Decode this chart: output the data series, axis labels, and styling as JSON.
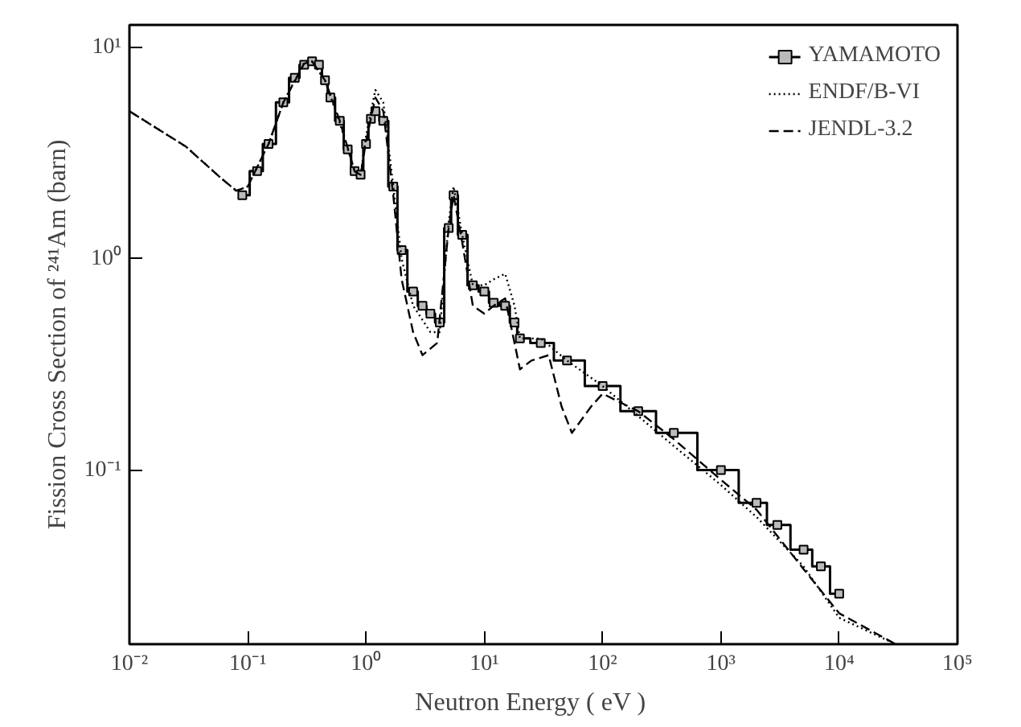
{
  "chart_data": {
    "type": "line",
    "xlabel": "Neutron   Energy   ( eV )",
    "ylabel": "Fission Cross Section of ²⁴¹Am (barn)",
    "log": "xy",
    "xlim": [
      0.01,
      100000
    ],
    "ylim": [
      0.015,
      12.8
    ],
    "xticks": [
      {
        "value": 0.01,
        "label": "10⁻²"
      },
      {
        "value": 0.1,
        "label": "10⁻¹"
      },
      {
        "value": 1,
        "label": "10⁰"
      },
      {
        "value": 10,
        "label": "10¹"
      },
      {
        "value": 100,
        "label": "10²"
      },
      {
        "value": 1000,
        "label": "10³"
      },
      {
        "value": 10000,
        "label": "10⁴"
      },
      {
        "value": 100000,
        "label": "10⁵"
      }
    ],
    "yticks": [
      {
        "value": 0.1,
        "label": "10⁻¹"
      },
      {
        "value": 1,
        "label": "10⁰"
      },
      {
        "value": 10,
        "label": "10¹"
      }
    ],
    "grid": false,
    "legend": "top right",
    "series": [
      {
        "name": "YAMAMOTO",
        "color": "#000000",
        "type": "step",
        "marker": "square",
        "line_style": "solid",
        "x": [
          0.09,
          0.12,
          0.15,
          0.2,
          0.25,
          0.3,
          0.35,
          0.4,
          0.45,
          0.5,
          0.6,
          0.7,
          0.8,
          0.9,
          1.0,
          1.1,
          1.2,
          1.4,
          1.7,
          2.0,
          2.5,
          3.0,
          3.5,
          4.2,
          5.0,
          5.5,
          6.5,
          8,
          10,
          12,
          15,
          18,
          20,
          30,
          50,
          100,
          200,
          400,
          1000,
          2000,
          3000,
          5000,
          7000,
          10000
        ],
        "values": [
          2.0,
          2.6,
          3.5,
          5.5,
          7.2,
          8.3,
          8.6,
          8.3,
          7.0,
          5.8,
          4.5,
          3.3,
          2.6,
          2.5,
          3.5,
          4.6,
          5.0,
          4.5,
          2.2,
          1.1,
          0.7,
          0.6,
          0.55,
          0.5,
          1.4,
          2.0,
          1.3,
          0.75,
          0.7,
          0.62,
          0.6,
          0.5,
          0.42,
          0.4,
          0.33,
          0.25,
          0.19,
          0.15,
          0.1,
          0.07,
          0.055,
          0.042,
          0.035,
          0.026
        ]
      },
      {
        "name": "ENDF/B-VI",
        "color": "#000000",
        "marker": "none",
        "line_style": "dotted",
        "x": [
          0.01,
          0.03,
          0.06,
          0.08,
          0.1,
          0.15,
          0.2,
          0.3,
          0.35,
          0.45,
          0.6,
          0.8,
          0.9,
          1.0,
          1.2,
          1.4,
          1.7,
          2.0,
          2.5,
          3.5,
          4.2,
          5.0,
          5.5,
          6.5,
          8,
          10,
          12,
          15,
          18,
          20,
          30,
          50,
          100,
          200,
          400,
          1000,
          2000,
          5000,
          10000,
          30000
        ],
        "values": [
          5.0,
          3.4,
          2.4,
          2.1,
          2.2,
          3.5,
          5.5,
          8.5,
          8.6,
          7.0,
          4.4,
          2.6,
          2.5,
          3.8,
          6.3,
          5.5,
          2.2,
          1.0,
          0.6,
          0.45,
          0.45,
          1.5,
          2.2,
          1.3,
          0.75,
          0.75,
          0.8,
          0.85,
          0.6,
          0.42,
          0.42,
          0.33,
          0.25,
          0.18,
          0.13,
          0.085,
          0.06,
          0.035,
          0.02,
          0.015
        ]
      },
      {
        "name": "JENDL-3.2",
        "color": "#000000",
        "marker": "none",
        "line_style": "dashed",
        "x": [
          0.01,
          0.03,
          0.06,
          0.08,
          0.1,
          0.15,
          0.2,
          0.3,
          0.35,
          0.45,
          0.6,
          0.8,
          0.9,
          1.0,
          1.2,
          1.4,
          1.7,
          2.0,
          2.5,
          3.0,
          4.0,
          5.0,
          5.5,
          6.5,
          8,
          10,
          12,
          15,
          18,
          20,
          25,
          35,
          45,
          55,
          80,
          100,
          200,
          400,
          1000,
          2000,
          5000,
          10000,
          30000
        ],
        "values": [
          5.0,
          3.4,
          2.4,
          2.1,
          2.2,
          3.5,
          5.5,
          8.4,
          8.6,
          7.0,
          4.5,
          2.6,
          2.5,
          3.6,
          5.8,
          5.0,
          2.0,
          0.8,
          0.45,
          0.35,
          0.4,
          1.4,
          2.0,
          1.2,
          0.6,
          0.55,
          0.6,
          0.65,
          0.4,
          0.3,
          0.33,
          0.35,
          0.2,
          0.15,
          0.2,
          0.23,
          0.19,
          0.14,
          0.09,
          0.065,
          0.034,
          0.021,
          0.015
        ]
      }
    ]
  }
}
